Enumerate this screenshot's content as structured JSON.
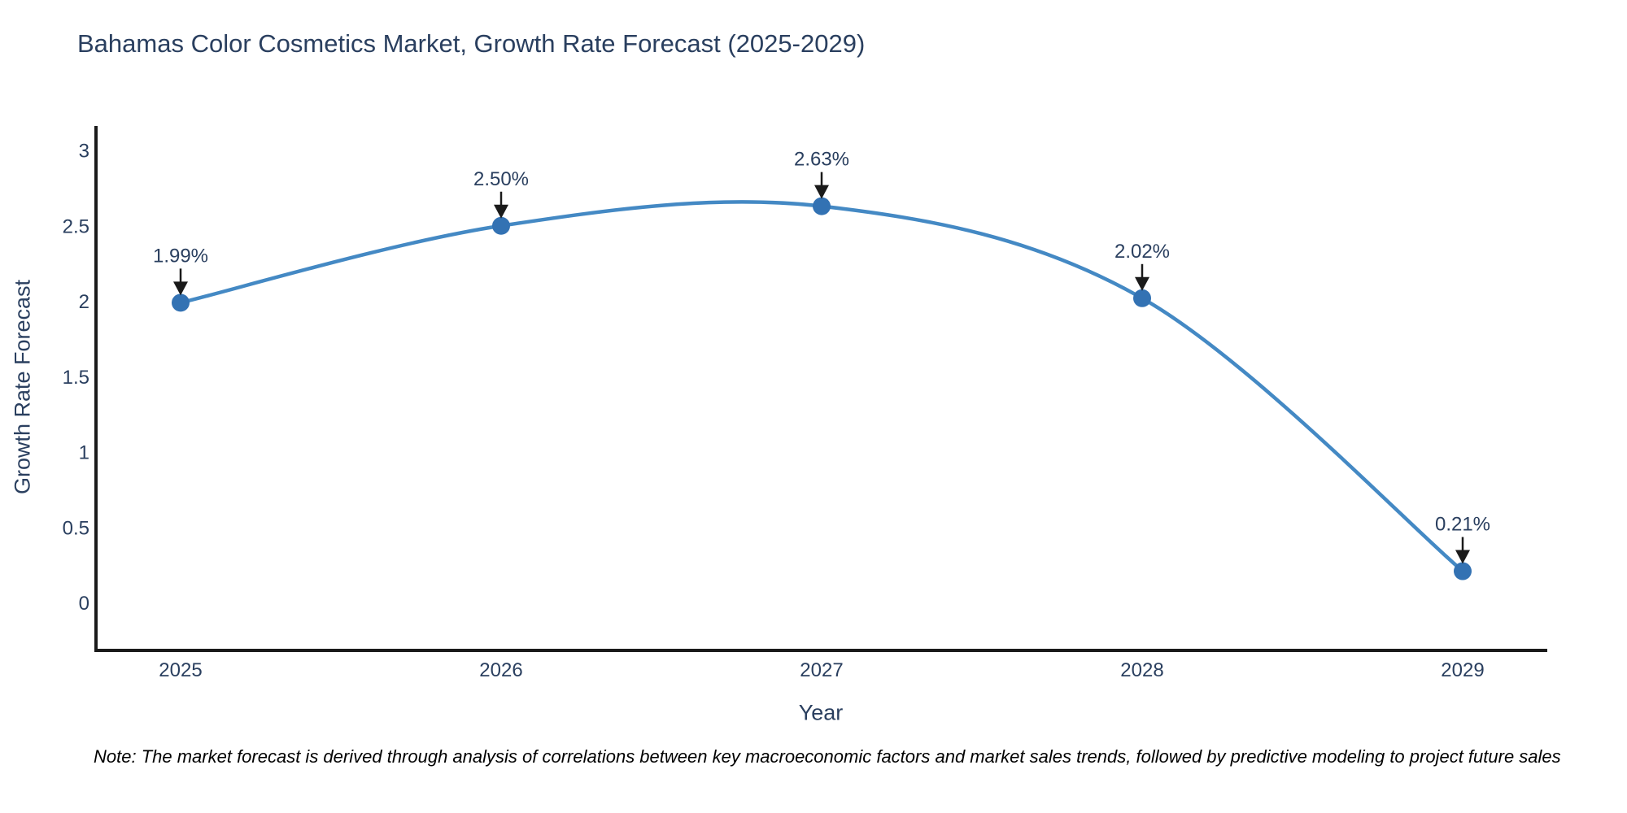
{
  "title": "Bahamas Color Cosmetics Market, Growth Rate Forecast (2025-2029)",
  "note": "Note: The market forecast is derived through analysis of correlations between key macroeconomic factors and market sales trends, followed by predictive modeling to project future sales",
  "chart_data": {
    "type": "line",
    "title": "Bahamas Color Cosmetics Market, Growth Rate Forecast (2025-2029)",
    "x": [
      "2025",
      "2026",
      "2027",
      "2028",
      "2029"
    ],
    "series": [
      {
        "name": "Growth Rate Forecast",
        "values": [
          1.99,
          2.5,
          2.63,
          2.02,
          0.21
        ],
        "point_labels": [
          "1.99%",
          "2.50%",
          "2.63%",
          "2.02%",
          "0.21%"
        ]
      }
    ],
    "xlabel": "Year",
    "ylabel": "Growth Rate Forecast",
    "yticks": [
      "0",
      "0.5",
      "1",
      "1.5",
      "2",
      "2.5",
      "3"
    ],
    "ytick_values": [
      0,
      0.5,
      1,
      1.5,
      2,
      2.5,
      3
    ],
    "ylim": [
      -0.32,
      3.18
    ],
    "line_shape": "spline",
    "markers": true,
    "grid": false,
    "legend_position": "none",
    "annotations_have_arrows": true
  },
  "colors": {
    "line": "#4489c4",
    "marker": "#3372b3",
    "axis_line": "#1a1a1a",
    "text": "#2a3f5f",
    "arrow": "#1a1a1a",
    "note_text": "#000000",
    "background": "#ffffff"
  }
}
